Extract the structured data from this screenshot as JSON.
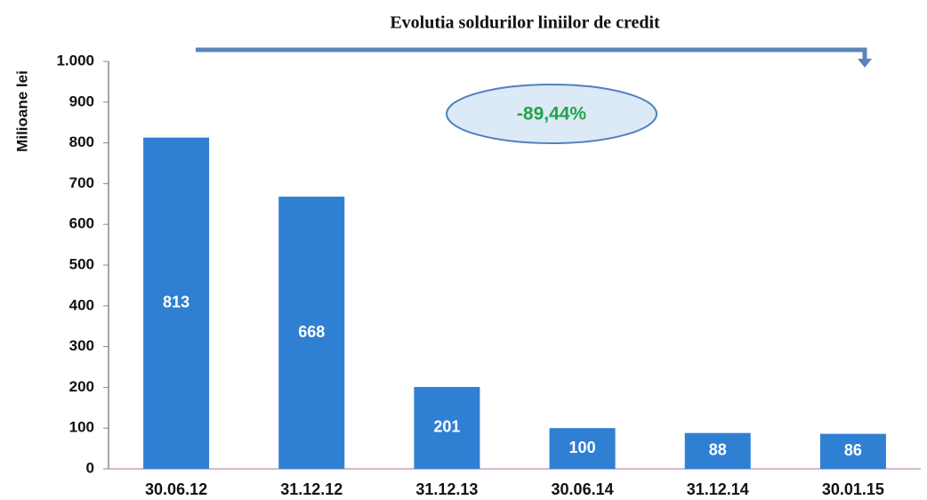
{
  "chart_data": {
    "type": "bar",
    "title": "Evolutia soldurilor liniilor de credit",
    "y_label": "Milioane lei",
    "annotation": "-89,44%",
    "categories": [
      "30.06.12",
      "31.12.12",
      "31.12.13",
      "30.06.14",
      "31.12.14",
      "30.01.15"
    ],
    "values": [
      813,
      668,
      201,
      100,
      88,
      86
    ],
    "color": "#2f7fd3",
    "ylim": [
      0,
      1000
    ],
    "yticks": [
      0,
      100,
      200,
      300,
      400,
      500,
      600,
      700,
      800,
      900,
      {
        "value": 1000,
        "label": "1.000"
      }
    ],
    "grid": false
  }
}
